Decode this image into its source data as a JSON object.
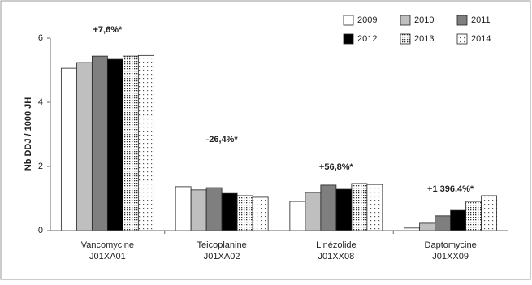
{
  "chart_data": {
    "type": "bar",
    "y_label": "Nb DDJ / 1000 JH",
    "categories": [
      [
        "Vancomycine",
        "J01XA01"
      ],
      [
        "Teicoplanine",
        "J01XA02"
      ],
      [
        "Linézolide",
        "J01XX08"
      ],
      [
        "Daptomycine",
        "J01XX09"
      ]
    ],
    "annotations": [
      "+7,6%*",
      "-26,4%*",
      "+56,8%*",
      "+1 396,4%*"
    ],
    "series": [
      {
        "name": "2009",
        "color": "#ffffff",
        "values": [
          5.06,
          1.37,
          0.91,
          0.08
        ]
      },
      {
        "name": "2010",
        "color": "#bfbfbf",
        "values": [
          5.24,
          1.27,
          1.19,
          0.23
        ]
      },
      {
        "name": "2011",
        "color": "#7f7f7f",
        "values": [
          5.44,
          1.34,
          1.42,
          0.46
        ]
      },
      {
        "name": "2012",
        "color": "#000000",
        "values": [
          5.34,
          1.16,
          1.29,
          0.63
        ]
      },
      {
        "name": "2013",
        "color": "#ffffff",
        "pattern": "dense-dots",
        "values": [
          5.44,
          1.09,
          1.47,
          0.91
        ]
      },
      {
        "name": "2014",
        "color": "#ffffff",
        "pattern": "sparse-dots",
        "values": [
          5.46,
          1.04,
          1.44,
          1.09
        ]
      }
    ],
    "ylim": [
      0,
      6
    ],
    "yticks": [
      0,
      2,
      4,
      6
    ],
    "legend": "top-right"
  }
}
